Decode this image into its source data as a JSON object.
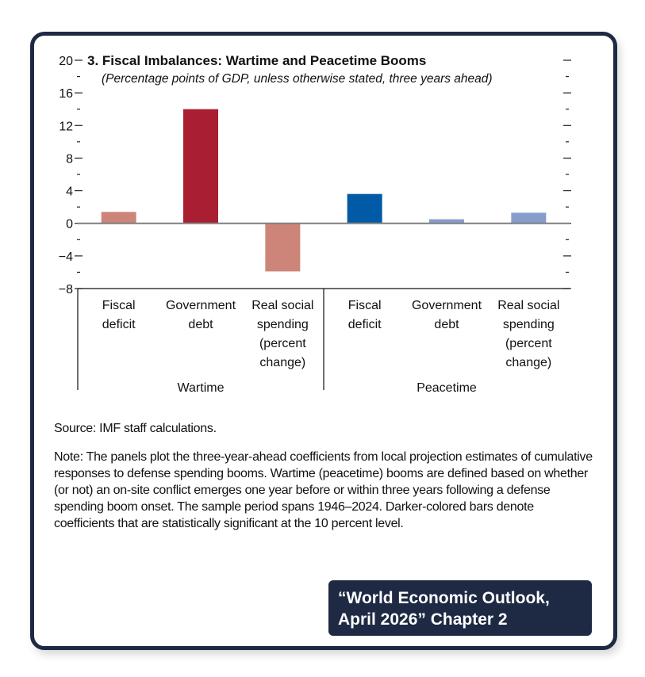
{
  "chart_data": {
    "type": "bar",
    "title": "3. Fiscal Imbalances: Wartime and Peacetime Booms",
    "subtitle": "(Percentage points of GDP, unless otherwise stated, three years ahead)",
    "ylim": [
      -8,
      20
    ],
    "yticks": [
      20,
      16,
      12,
      8,
      4,
      0,
      -4,
      -8
    ],
    "ytick_labels": [
      "20",
      "16",
      "12",
      "8",
      "4",
      "0",
      "−4",
      "−8"
    ],
    "groups": [
      {
        "name": "Wartime",
        "categories": [
          "Fiscal deficit",
          "Government debt",
          "Real social spending (percent change)"
        ],
        "values": [
          1.4,
          14.0,
          -5.9
        ],
        "colors": [
          "#cd857a",
          "#a91e30",
          "#cd857a"
        ]
      },
      {
        "name": "Peacetime",
        "categories": [
          "Fiscal deficit",
          "Government debt",
          "Real social spending (percent change)"
        ],
        "values": [
          3.6,
          0.5,
          1.3
        ],
        "colors": [
          "#005aa5",
          "#859dcb",
          "#859dcb"
        ]
      }
    ],
    "category_label_lines": [
      [
        "Fiscal",
        "deficit"
      ],
      [
        "Government",
        "debt"
      ],
      [
        "Real social",
        "spending",
        "(percent",
        "change)"
      ]
    ]
  },
  "source": "Source: IMF staff calculations.",
  "note": "Note: The panels plot the three-year-ahead coefficients from local projection estimates of cumulative responses to defense spending booms. Wartime (peacetime) booms are defined based on whether (or not) an on-site conflict emerges one year before or within three years following a defense spending boom onset. The sample period spans 1946–2024. Darker-colored bars denote coefficients that are statistically significant at the 10 percent level.",
  "badge": {
    "line1": "“World Economic Outlook,",
    "line2": "April 2026” Chapter 2"
  }
}
